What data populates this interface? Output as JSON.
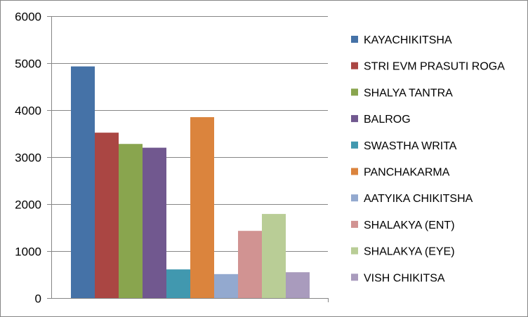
{
  "chart_data": {
    "type": "bar",
    "title": "",
    "xlabel": "",
    "ylabel": "",
    "ylim": [
      0,
      6000
    ],
    "yticks": [
      0,
      1000,
      2000,
      3000,
      4000,
      5000,
      6000
    ],
    "grid": true,
    "legend_position": "right",
    "series": [
      {
        "name": "KAYACHIKITSHA",
        "value": 4930,
        "color": "#4572A7"
      },
      {
        "name": "STRI EVM PRASUTI ROGA",
        "value": 3520,
        "color": "#AA4643"
      },
      {
        "name": "SHALYA TANTRA",
        "value": 3280,
        "color": "#89A54E"
      },
      {
        "name": "BALROG",
        "value": 3200,
        "color": "#71588F"
      },
      {
        "name": "SWASTHA WRITA",
        "value": 610,
        "color": "#4198AF"
      },
      {
        "name": "PANCHAKARMA",
        "value": 3850,
        "color": "#DB843D"
      },
      {
        "name": "AATYIKA CHIKITSHA",
        "value": 510,
        "color": "#93A9CF"
      },
      {
        "name": "SHALAKYA (ENT)",
        "value": 1430,
        "color": "#D19392"
      },
      {
        "name": "SHALAKYA (EYE)",
        "value": 1790,
        "color": "#B9CD96"
      },
      {
        "name": "VISH CHIKITSA",
        "value": 550,
        "color": "#A99BBD"
      }
    ]
  }
}
